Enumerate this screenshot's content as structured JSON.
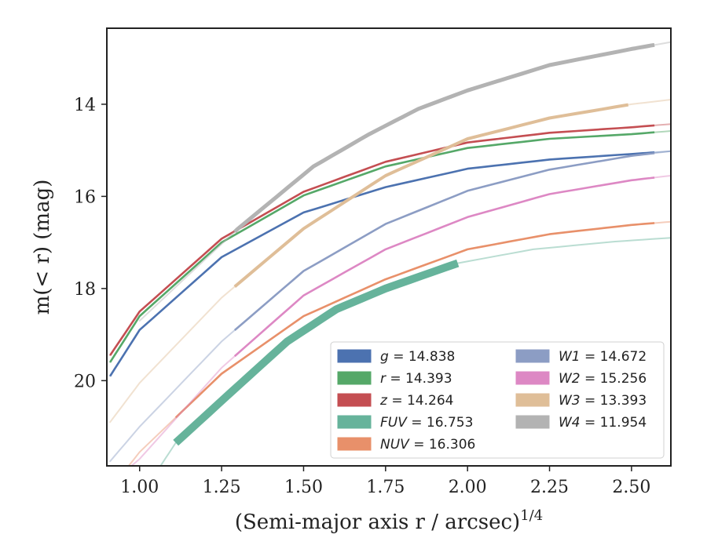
{
  "chart_data": {
    "type": "line",
    "xlabel": "(Semi-major axis r / arcsec)^{1/4}",
    "ylabel": "m(< r) (mag)",
    "xlim": [
      0.9,
      2.62
    ],
    "ylim": [
      21.85,
      12.35
    ],
    "y_inverted": true,
    "x_ticks": [
      "1.00",
      "1.25",
      "1.50",
      "1.75",
      "2.00",
      "2.25",
      "2.50"
    ],
    "x_tick_values": [
      1.0,
      1.25,
      1.5,
      1.75,
      2.0,
      2.25,
      2.5
    ],
    "y_ticks": [
      "14",
      "16",
      "18",
      "20"
    ],
    "y_tick_values": [
      14,
      16,
      18,
      20
    ],
    "grid": false,
    "legend_position": "lower-right",
    "legend_columns": 2,
    "series": [
      {
        "name": "g = 14.838",
        "color": "#4c72b0",
        "points": [
          [
            0.91,
            19.9
          ],
          [
            1.0,
            18.9
          ],
          [
            1.25,
            17.32
          ],
          [
            1.5,
            16.35
          ],
          [
            1.75,
            15.8
          ],
          [
            2.0,
            15.4
          ],
          [
            2.25,
            15.2
          ],
          [
            2.5,
            15.08
          ],
          [
            2.62,
            15.02
          ]
        ],
        "thick_range": [
          0.91,
          2.57
        ],
        "thick_width": 2.6
      },
      {
        "name": "r = 14.393",
        "color": "#55a868",
        "points": [
          [
            0.91,
            19.6
          ],
          [
            1.0,
            18.6
          ],
          [
            1.25,
            17.0
          ],
          [
            1.5,
            15.98
          ],
          [
            1.75,
            15.35
          ],
          [
            2.0,
            14.95
          ],
          [
            2.25,
            14.75
          ],
          [
            2.5,
            14.65
          ],
          [
            2.62,
            14.58
          ]
        ],
        "thick_range": [
          0.91,
          2.57
        ],
        "thick_width": 2.6
      },
      {
        "name": "z = 14.264",
        "color": "#c44e52",
        "points": [
          [
            0.91,
            19.45
          ],
          [
            1.0,
            18.5
          ],
          [
            1.25,
            16.92
          ],
          [
            1.5,
            15.9
          ],
          [
            1.75,
            15.25
          ],
          [
            2.0,
            14.83
          ],
          [
            2.25,
            14.62
          ],
          [
            2.5,
            14.5
          ],
          [
            2.62,
            14.43
          ]
        ],
        "thick_range": [
          0.91,
          2.57
        ],
        "thick_width": 2.6
      },
      {
        "name": "FUV = 16.753",
        "color": "#66b39b",
        "points": [
          [
            1.05,
            22.0
          ],
          [
            1.11,
            21.35
          ],
          [
            1.31,
            20.05
          ],
          [
            1.45,
            19.15
          ],
          [
            1.6,
            18.45
          ],
          [
            1.75,
            18.0
          ],
          [
            1.97,
            17.45
          ],
          [
            2.2,
            17.15
          ],
          [
            2.45,
            16.98
          ],
          [
            2.62,
            16.9
          ]
        ],
        "thick_range": [
          1.11,
          1.97
        ],
        "thick_width": 10
      },
      {
        "name": "NUV = 16.306",
        "color": "#e8906a",
        "points": [
          [
            0.95,
            22.0
          ],
          [
            1.0,
            21.55
          ],
          [
            1.25,
            19.85
          ],
          [
            1.5,
            18.6
          ],
          [
            1.75,
            17.8
          ],
          [
            2.0,
            17.15
          ],
          [
            2.25,
            16.82
          ],
          [
            2.5,
            16.62
          ],
          [
            2.62,
            16.55
          ]
        ],
        "thick_range": [
          1.11,
          2.57
        ],
        "thick_width": 2.6
      },
      {
        "name": "W1 = 14.672",
        "color": "#8c9dc4",
        "points": [
          [
            0.91,
            21.75
          ],
          [
            1.0,
            21.0
          ],
          [
            1.25,
            19.15
          ],
          [
            1.5,
            17.62
          ],
          [
            1.75,
            16.6
          ],
          [
            2.0,
            15.88
          ],
          [
            2.25,
            15.42
          ],
          [
            2.5,
            15.12
          ],
          [
            2.62,
            15.02
          ]
        ],
        "thick_range": [
          1.29,
          2.57
        ],
        "thick_width": 2.6
      },
      {
        "name": "W2 = 15.256",
        "color": "#dd88c4",
        "points": [
          [
            0.95,
            22.0
          ],
          [
            1.0,
            21.7
          ],
          [
            1.25,
            19.72
          ],
          [
            1.5,
            18.15
          ],
          [
            1.75,
            17.15
          ],
          [
            2.0,
            16.45
          ],
          [
            2.25,
            15.95
          ],
          [
            2.5,
            15.65
          ],
          [
            2.62,
            15.55
          ]
        ],
        "thick_range": [
          1.29,
          2.57
        ],
        "thick_width": 2.6
      },
      {
        "name": "W3 = 13.393",
        "color": "#dfbe98",
        "points": [
          [
            0.91,
            20.9
          ],
          [
            1.0,
            20.05
          ],
          [
            1.25,
            18.2
          ],
          [
            1.5,
            16.7
          ],
          [
            1.75,
            15.55
          ],
          [
            2.0,
            14.75
          ],
          [
            2.25,
            14.3
          ],
          [
            2.5,
            14.0
          ],
          [
            2.62,
            13.9
          ]
        ],
        "thick_range": [
          1.29,
          2.49
        ],
        "thick_width": 4
      },
      {
        "name": "W4 = 11.954",
        "color": "#b3b3b3",
        "points": [
          [
            1.0,
            18.7
          ],
          [
            1.15,
            17.7
          ],
          [
            1.3,
            16.7
          ],
          [
            1.53,
            15.35
          ],
          [
            1.7,
            14.65
          ],
          [
            1.85,
            14.1
          ],
          [
            2.0,
            13.7
          ],
          [
            2.25,
            13.15
          ],
          [
            2.5,
            12.8
          ],
          [
            2.62,
            12.65
          ]
        ],
        "thick_range": [
          1.29,
          2.57
        ],
        "thick_width": 5
      }
    ]
  }
}
